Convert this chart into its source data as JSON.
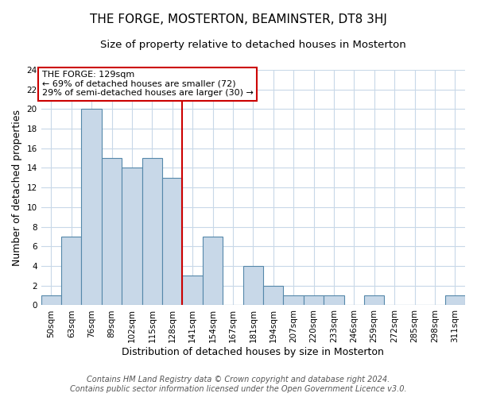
{
  "title": "THE FORGE, MOSTERTON, BEAMINSTER, DT8 3HJ",
  "subtitle": "Size of property relative to detached houses in Mosterton",
  "xlabel": "Distribution of detached houses by size in Mosterton",
  "ylabel": "Number of detached properties",
  "bin_labels": [
    "50sqm",
    "63sqm",
    "76sqm",
    "89sqm",
    "102sqm",
    "115sqm",
    "128sqm",
    "141sqm",
    "154sqm",
    "167sqm",
    "181sqm",
    "194sqm",
    "207sqm",
    "220sqm",
    "233sqm",
    "246sqm",
    "259sqm",
    "272sqm",
    "285sqm",
    "298sqm",
    "311sqm"
  ],
  "bar_values": [
    1,
    7,
    20,
    15,
    14,
    15,
    13,
    3,
    7,
    0,
    4,
    2,
    1,
    1,
    1,
    0,
    1,
    0,
    0,
    0,
    1
  ],
  "bar_color": "#c8d8e8",
  "bar_edge_color": "#5588aa",
  "vline_color": "#cc0000",
  "annotation_text": "THE FORGE: 129sqm\n← 69% of detached houses are smaller (72)\n29% of semi-detached houses are larger (30) →",
  "annotation_box_color": "#ffffff",
  "annotation_box_edge_color": "#cc0000",
  "ylim": [
    0,
    24
  ],
  "yticks": [
    0,
    2,
    4,
    6,
    8,
    10,
    12,
    14,
    16,
    18,
    20,
    22,
    24
  ],
  "footer_line1": "Contains HM Land Registry data © Crown copyright and database right 2024.",
  "footer_line2": "Contains public sector information licensed under the Open Government Licence v3.0.",
  "background_color": "#ffffff",
  "grid_color": "#c8d8e8",
  "title_fontsize": 11,
  "subtitle_fontsize": 9.5,
  "axis_label_fontsize": 9,
  "tick_fontsize": 7.5,
  "annotation_fontsize": 8,
  "footer_fontsize": 7
}
